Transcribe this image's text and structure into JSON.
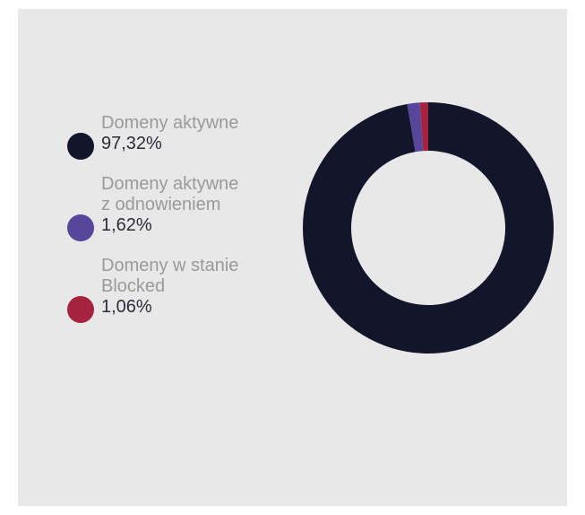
{
  "chart_data": {
    "type": "pie",
    "variant": "donut",
    "title": "",
    "legend_position": "left",
    "slices": [
      {
        "label": "Domeny aktywne",
        "value": 97.32,
        "value_label": "97,32%",
        "color": "#13152a"
      },
      {
        "label": "Domeny aktywne\nz odnowieniem",
        "value": 1.62,
        "value_label": "1,62%",
        "color": "#56479a"
      },
      {
        "label": "Domeny w stanie\nBlocked",
        "value": 1.06,
        "value_label": "1,06%",
        "color": "#a6233f"
      }
    ]
  },
  "legend": {
    "items": [
      {
        "label_lines": [
          "Domeny aktywne"
        ],
        "value": "97,32%",
        "color": "#13152a"
      },
      {
        "label_lines": [
          "Domeny aktywne",
          "z odnowieniem"
        ],
        "value": "1,62%",
        "color": "#56479a"
      },
      {
        "label_lines": [
          "Domeny w stanie",
          "Blocked"
        ],
        "value": "1,06%",
        "color": "#a6233f"
      }
    ]
  }
}
